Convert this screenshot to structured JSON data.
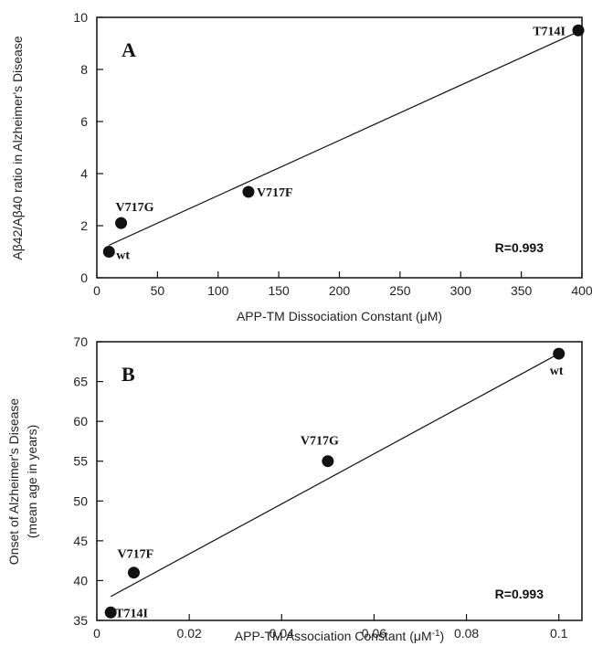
{
  "chart_data": [
    {
      "type": "scatter",
      "panel_label": "A",
      "xlabel": "APP-TM Dissociation Constant (μM)",
      "ylabel": "Aβ42/Aβ40 ratio in Alzheimer's Disease",
      "xlim": [
        0,
        400
      ],
      "ylim": [
        0,
        10
      ],
      "x_ticks": [
        "0",
        "50",
        "100",
        "150",
        "200",
        "250",
        "300",
        "350",
        "400"
      ],
      "y_ticks": [
        "0",
        "2",
        "4",
        "6",
        "8",
        "10"
      ],
      "points": [
        {
          "label": "wt",
          "x": 10,
          "y": 1.0
        },
        {
          "label": "V717G",
          "x": 20,
          "y": 2.1
        },
        {
          "label": "V717F",
          "x": 125,
          "y": 3.3
        },
        {
          "label": "T714I",
          "x": 397,
          "y": 9.5
        }
      ],
      "fit_line": {
        "x": [
          10,
          397
        ],
        "y": [
          1.25,
          9.45
        ]
      },
      "annotation": "R=0.993",
      "grid": false
    },
    {
      "type": "scatter",
      "panel_label": "B",
      "xlabel": "APP-TM Association Constant (μM",
      "xlabel_sup": "-1",
      "xlabel_end": ")",
      "ylabel_line1": "Onset of Alzheimer's Disease",
      "ylabel_line2": "(mean age in years)",
      "xlim": [
        0,
        0.105
      ],
      "ylim": [
        35,
        70
      ],
      "x_ticks": [
        "0",
        "0.02",
        "0.04",
        "0.06",
        "0.08",
        "0.1"
      ],
      "x_tick_values": [
        0,
        0.02,
        0.04,
        0.06,
        0.08,
        0.1
      ],
      "y_ticks": [
        "35",
        "40",
        "45",
        "50",
        "55",
        "60",
        "65",
        "70"
      ],
      "points": [
        {
          "label": "T714I",
          "x": 0.003,
          "y": 36.0
        },
        {
          "label": "V717F",
          "x": 0.008,
          "y": 41.0
        },
        {
          "label": "V717G",
          "x": 0.05,
          "y": 55.0
        },
        {
          "label": "wt",
          "x": 0.1,
          "y": 68.5
        }
      ],
      "fit_line": {
        "x": [
          0.003,
          0.1
        ],
        "y": [
          38.0,
          68.5
        ]
      },
      "annotation": "R=0.993",
      "grid": false
    }
  ]
}
